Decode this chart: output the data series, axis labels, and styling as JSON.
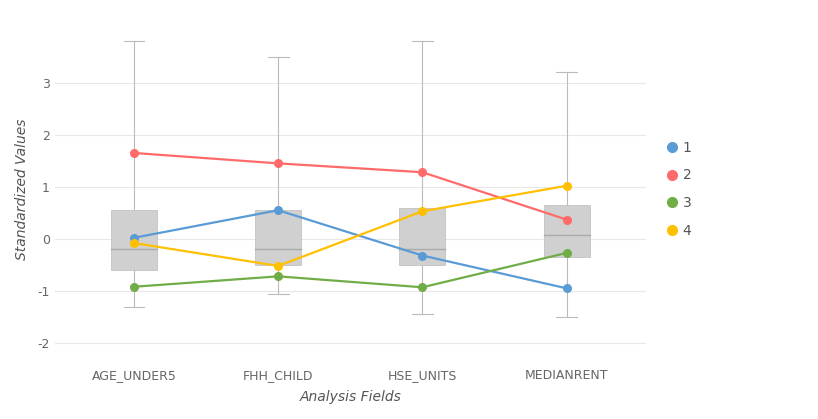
{
  "categories": [
    "AGE_UNDER5",
    "FHH_CHILD",
    "HSE_UNITS",
    "MEDIANRENT"
  ],
  "box_stats": [
    {
      "whisker_low": -1.3,
      "q1": -0.6,
      "median": -0.2,
      "q3": 0.55,
      "whisker_high": 3.8
    },
    {
      "whisker_low": -1.05,
      "q1": -0.5,
      "median": -0.2,
      "q3": 0.55,
      "whisker_high": 3.5
    },
    {
      "whisker_low": -1.45,
      "q1": -0.5,
      "median": -0.2,
      "q3": 0.6,
      "whisker_high": 3.8
    },
    {
      "whisker_low": -1.5,
      "q1": -0.35,
      "median": 0.08,
      "q3": 0.65,
      "whisker_high": 3.2
    }
  ],
  "cluster_lines": {
    "1": {
      "color": "#5B9BD5",
      "values": [
        0.02,
        0.55,
        -0.32,
        -0.95
      ]
    },
    "2": {
      "color": "#FF6B6B",
      "values": [
        1.65,
        1.45,
        1.28,
        0.37
      ]
    },
    "3": {
      "color": "#70AD47",
      "values": [
        -0.92,
        -0.72,
        -0.93,
        -0.27
      ]
    },
    "4": {
      "color": "#FFC000",
      "values": [
        -0.08,
        -0.52,
        0.53,
        1.02
      ]
    }
  },
  "xlabel": "Analysis Fields",
  "ylabel": "Standardized Values",
  "ylim": [
    -2.4,
    4.3
  ],
  "yticks": [
    -2,
    -1,
    0,
    1,
    2,
    3
  ],
  "background_color": "#ffffff",
  "box_color": "#D0D0D0",
  "box_edge_color": "#BBBBBB",
  "median_color": "#AAAAAA",
  "whisker_color": "#BBBBBB",
  "grid_color": "#E8E8E8",
  "box_width": 0.32,
  "cap_ratio": 0.45,
  "figsize": [
    8.18,
    4.19
  ],
  "dpi": 100
}
